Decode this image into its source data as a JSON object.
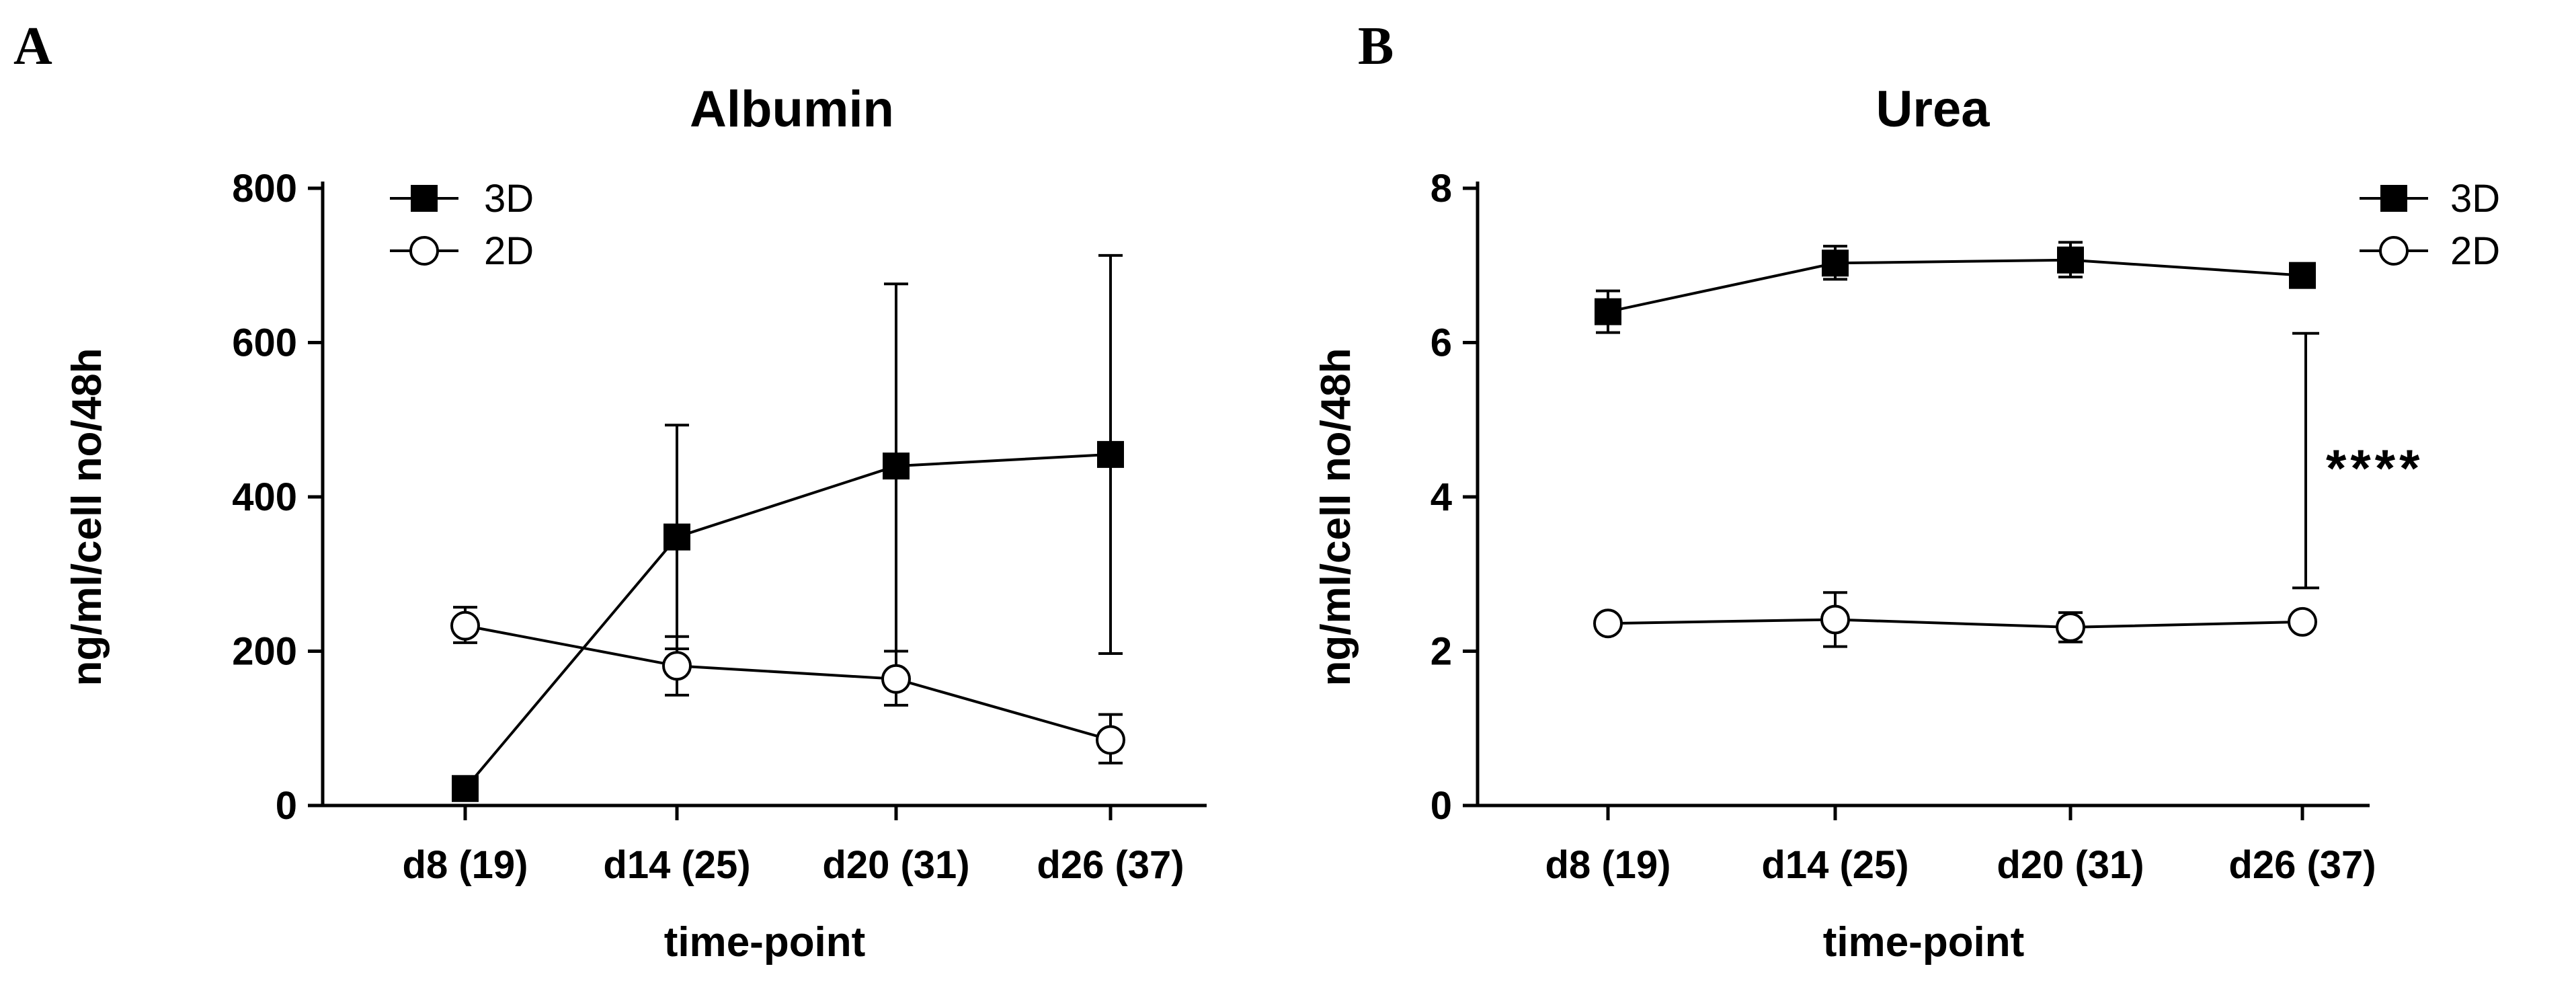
{
  "figure": {
    "panels": [
      "A",
      "B"
    ]
  },
  "chart_data": [
    {
      "panel": "A",
      "type": "line",
      "title": "Albumin",
      "xlabel": "time-point",
      "ylabel": "ng/ml/cell no/48h",
      "categories": [
        "d8 (19)",
        "d14 (25)",
        "d20 (31)",
        "d26 (37)"
      ],
      "ylim": [
        0,
        800
      ],
      "yticks": [
        0,
        200,
        400,
        600,
        800
      ],
      "legend_position": "top-left",
      "series": [
        {
          "name": "3D",
          "marker": "filled-square",
          "color": "#000000",
          "values": [
            22,
            348,
            440,
            455
          ],
          "error_upper": [
            null,
            493,
            676,
            713
          ],
          "error_lower": [
            null,
            203,
            200,
            197
          ]
        },
        {
          "name": "2D",
          "marker": "open-circle",
          "color": "#000000",
          "values": [
            233,
            181,
            164,
            85
          ],
          "error_upper": [
            257,
            219,
            200,
            118
          ],
          "error_lower": [
            211,
            143,
            130,
            55
          ]
        }
      ],
      "annotations": []
    },
    {
      "panel": "B",
      "type": "line",
      "title": "Urea",
      "xlabel": "time-point",
      "ylabel": "ng/ml/cell no/48h",
      "categories": [
        "d8 (19)",
        "d14 (25)",
        "d20 (31)",
        "d26 (37)"
      ],
      "ylim": [
        0,
        8
      ],
      "yticks": [
        0,
        2,
        4,
        6,
        8
      ],
      "legend_position": "top-right",
      "series": [
        {
          "name": "3D",
          "marker": "filled-square",
          "color": "#000000",
          "values": [
            6.4,
            7.03,
            7.07,
            6.87
          ],
          "error_upper": [
            6.67,
            7.25,
            7.3,
            null
          ],
          "error_lower": [
            6.13,
            6.82,
            6.85,
            null
          ]
        },
        {
          "name": "2D",
          "marker": "open-circle",
          "color": "#000000",
          "values": [
            2.36,
            2.41,
            2.31,
            2.38
          ],
          "error_upper": [
            null,
            2.76,
            2.5,
            null
          ],
          "error_lower": [
            null,
            2.06,
            2.12,
            null
          ]
        }
      ],
      "annotations": [
        {
          "text": "****",
          "type": "significance-bracket",
          "y_from": 2.82,
          "y_to": 6.12
        }
      ]
    }
  ]
}
